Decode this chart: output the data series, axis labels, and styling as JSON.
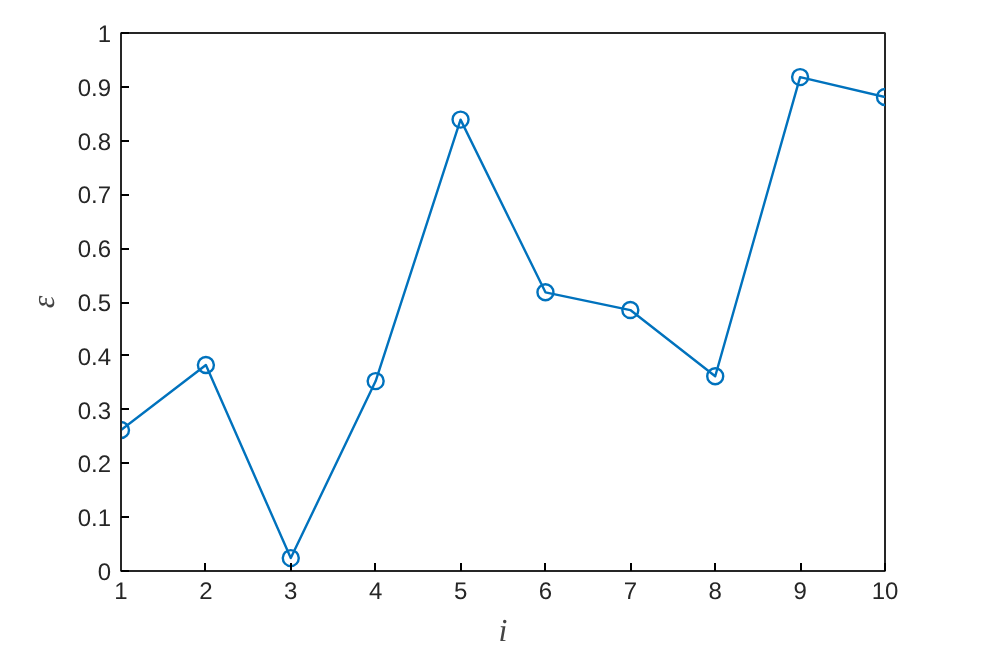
{
  "chart_data": {
    "type": "line",
    "xlabel": "i",
    "ylabel": "ε",
    "x": [
      1,
      2,
      3,
      4,
      5,
      6,
      7,
      8,
      9,
      10
    ],
    "series": [
      {
        "color": "#0072bd",
        "values": [
          0.262,
          0.383,
          0.024,
          0.353,
          0.839,
          0.518,
          0.485,
          0.362,
          0.918,
          0.881
        ]
      }
    ],
    "xlim": [
      1,
      10
    ],
    "ylim": [
      0,
      1
    ],
    "xticks": [
      1,
      2,
      3,
      4,
      5,
      6,
      7,
      8,
      9,
      10
    ],
    "yticks": [
      0,
      {
        "value": 0.1,
        "label": "0.1"
      },
      {
        "value": 0.2,
        "label": "0.2"
      },
      {
        "value": 0.3,
        "label": "0.3"
      },
      {
        "value": 0.4,
        "label": "0.4"
      },
      {
        "value": 0.5,
        "label": "0.5"
      },
      {
        "value": 0.6,
        "label": "0.6"
      },
      {
        "value": 0.7,
        "label": "0.7"
      },
      {
        "value": 0.8,
        "label": "0.8"
      },
      {
        "value": 0.9,
        "label": "0.9"
      },
      1
    ],
    "grid": false,
    "marker": "circle",
    "line_style": "solid"
  }
}
